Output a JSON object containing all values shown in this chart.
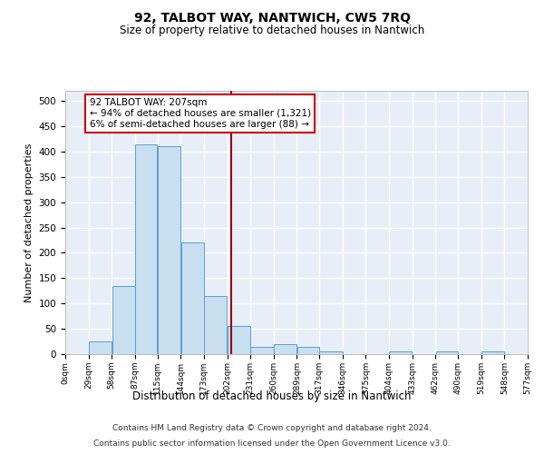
{
  "title": "92, TALBOT WAY, NANTWICH, CW5 7RQ",
  "subtitle": "Size of property relative to detached houses in Nantwich",
  "xlabel": "Distribution of detached houses by size in Nantwich",
  "ylabel": "Number of detached properties",
  "bin_edges": [
    0,
    29,
    58,
    87,
    115,
    144,
    173,
    202,
    231,
    260,
    289,
    317,
    346,
    375,
    404,
    433,
    462,
    490,
    519,
    548,
    577
  ],
  "bar_heights": [
    0,
    25,
    135,
    415,
    410,
    220,
    115,
    55,
    15,
    20,
    15,
    5,
    0,
    0,
    5,
    0,
    5,
    0,
    5,
    0
  ],
  "bar_color": "#c8dff0",
  "bar_edge_color": "#5a9fd4",
  "property_size": 207,
  "annotation_line1": "92 TALBOT WAY: 207sqm",
  "annotation_line2": "← 94% of detached houses are smaller (1,321)",
  "annotation_line3": "6% of semi-detached houses are larger (88) →",
  "annotation_box_color": "#ffffff",
  "annotation_box_edge_color": "#cc0000",
  "vline_color": "#990000",
  "vline_x": 207,
  "background_color": "#e8eef8",
  "grid_color": "#ffffff",
  "ylim": [
    0,
    520
  ],
  "yticks": [
    0,
    50,
    100,
    150,
    200,
    250,
    300,
    350,
    400,
    450,
    500
  ],
  "footer_line1": "Contains HM Land Registry data © Crown copyright and database right 2024.",
  "footer_line2": "Contains public sector information licensed under the Open Government Licence v3.0."
}
